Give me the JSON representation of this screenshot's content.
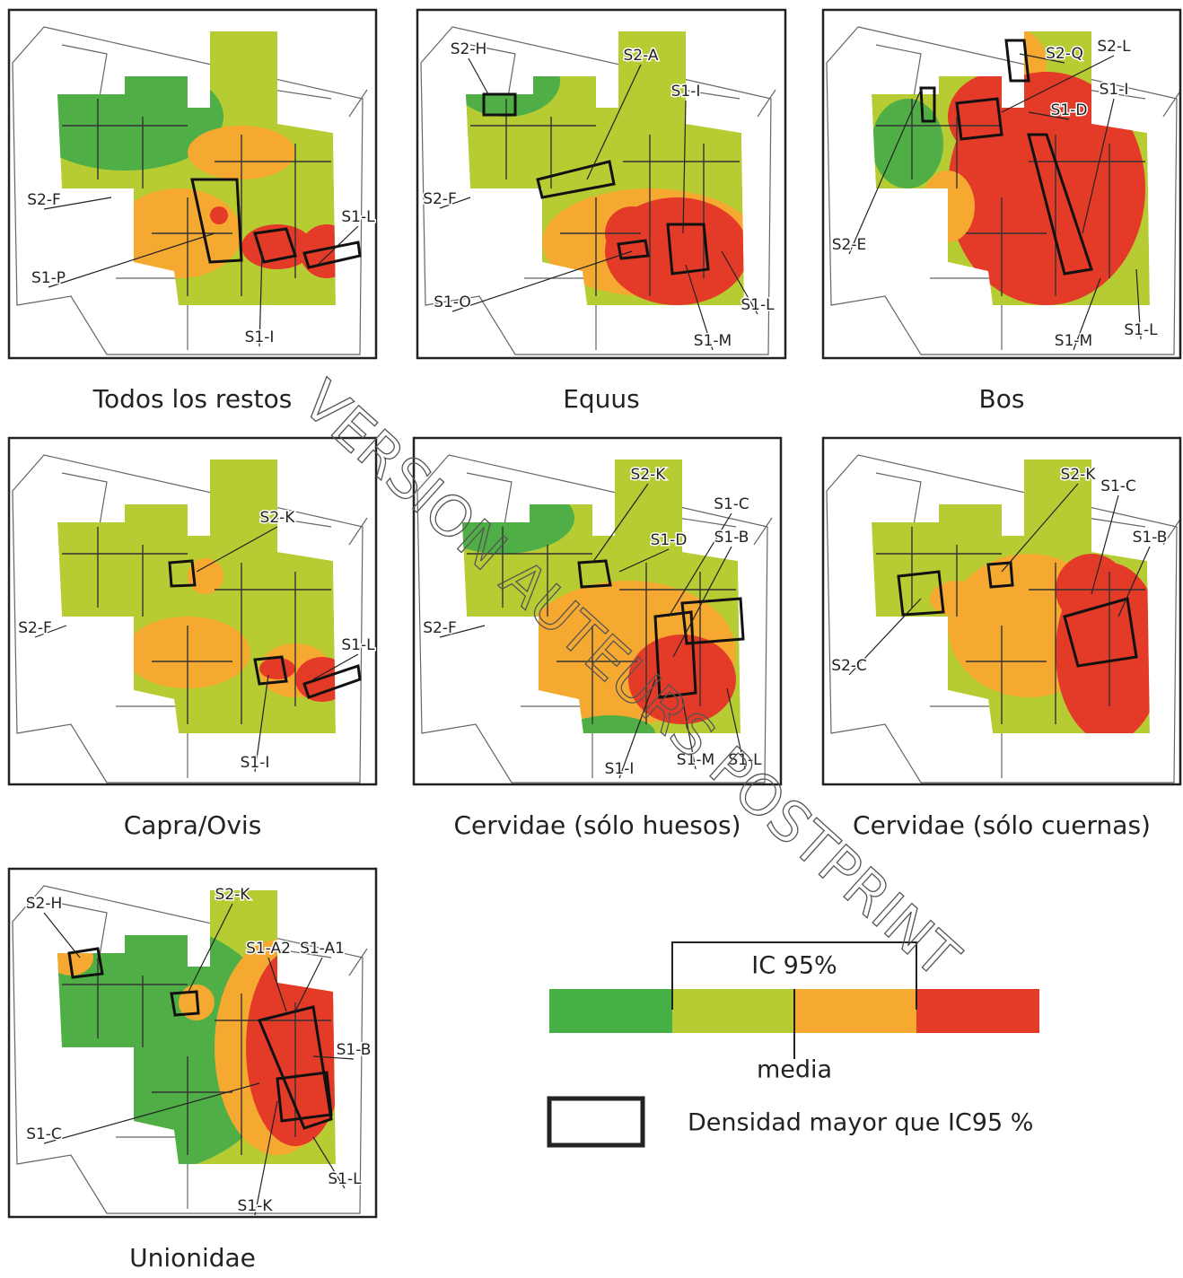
{
  "panels": [
    {
      "title": "Todos los restos",
      "labels": [
        "S2-F",
        "S1-P",
        "S1-I",
        "S1-L"
      ]
    },
    {
      "title": "Equus",
      "labels": [
        "S2-H",
        "S2-A",
        "S1-I",
        "S2-F",
        "S1-O",
        "S1-L",
        "S1-M"
      ]
    },
    {
      "title": "Bos",
      "labels": [
        "S2-Q",
        "S2-L",
        "S1-I",
        "S1-D",
        "S2-E",
        "S1-M",
        "S1-L"
      ]
    },
    {
      "title": "Capra/Ovis",
      "labels": [
        "S2-K",
        "S2-F",
        "S1-L",
        "S1-I"
      ]
    },
    {
      "title": "Cervidae (sólo huesos)",
      "labels": [
        "S2-K",
        "S1-C",
        "S1-D",
        "S1-B",
        "S2-F",
        "S1-I",
        "S1-M",
        "S1-L"
      ]
    },
    {
      "title": "Cervidae (sólo cuernas)",
      "labels": [
        "S2-K",
        "S1-C",
        "S1-B",
        "S2-C"
      ]
    },
    {
      "title": "Unionidae",
      "labels": [
        "S2-H",
        "S2-K",
        "S1-A2",
        "S1-A1",
        "S1-B",
        "S1-C",
        "S1-K",
        "S1-L"
      ]
    }
  ],
  "legend": {
    "ci": "IC 95%",
    "mean": "media",
    "box": "Densidad mayor que IC95 %"
  },
  "watermark": "VERSION AUTEURS POSTPRINT"
}
